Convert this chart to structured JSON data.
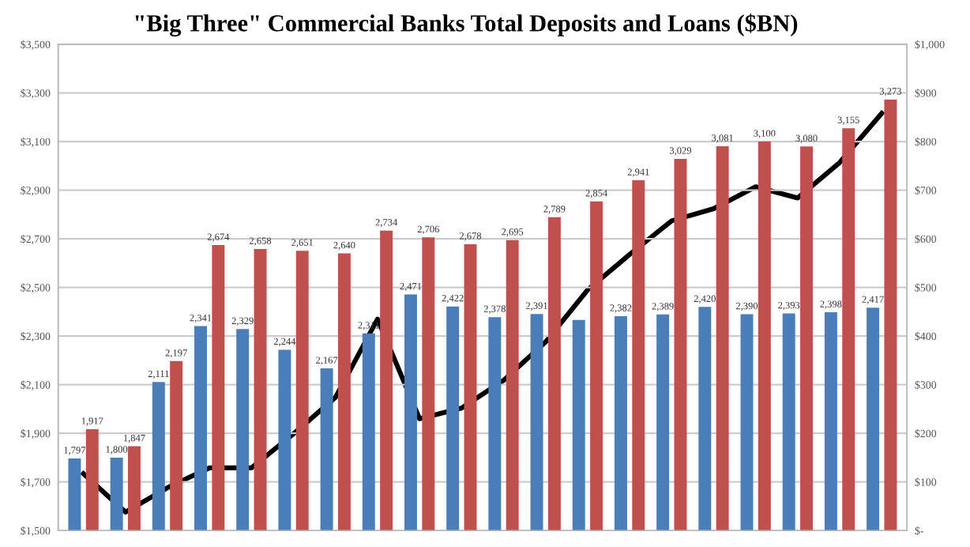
{
  "chart_data": {
    "type": "bar",
    "title": "\"Big Three\" Commercial Banks Total Deposits and Loans ($BN)",
    "categories": [
      null,
      null,
      null,
      null,
      null,
      null,
      null,
      null,
      null,
      null,
      null,
      null,
      null,
      null,
      null,
      null,
      null,
      null,
      null,
      null
    ],
    "series": [
      {
        "type": "bar",
        "color": "#4a7ebb",
        "values": [
          1797,
          1800,
          2111,
          2341,
          2329,
          2244,
          2167,
          2311,
          2471,
          2422,
          2378,
          2391,
          2366,
          2382,
          2389,
          2420,
          2390,
          2393,
          2398,
          2417
        ],
        "value_labels": [
          "1,797",
          "1,800",
          "2,111",
          "2,341",
          "2,329",
          "2,244",
          "2,167",
          "2,311",
          "2,471",
          "2,422",
          "2,378",
          "2,391",
          null,
          "2,382",
          "2,389",
          "2,420",
          "2,390",
          "2,393",
          "2,398",
          "2,417"
        ]
      },
      {
        "type": "bar",
        "color": "#c0504d",
        "values": [
          1917,
          1847,
          2197,
          2674,
          2658,
          2651,
          2640,
          2734,
          2706,
          2678,
          2695,
          2789,
          2854,
          2941,
          3029,
          3081,
          3100,
          3080,
          3155,
          3273
        ],
        "value_labels": [
          "1,917",
          "1,847",
          "2,197",
          "2,674",
          "2,658",
          "2,651",
          "2,640",
          "2,734",
          "2,706",
          "2,678",
          "2,695",
          "2,789",
          "2,854",
          "2,941",
          "3,029",
          "3,081",
          "3,100",
          "3,080",
          "3,155",
          "3,273"
        ]
      },
      {
        "type": "line",
        "axis": "y2",
        "color": "#000000",
        "values": [
          117,
          38,
          88,
          129,
          129,
          199,
          274,
          435,
          230,
          252,
          309,
          388,
          495,
          568,
          637,
          662,
          707,
          684,
          757,
          858
        ]
      }
    ],
    "ylim": [
      1500,
      3500
    ],
    "yticks": [
      {
        "value": 1500,
        "label": "$1,500"
      },
      {
        "value": 1700,
        "label": "$1,700"
      },
      {
        "value": 1900,
        "label": "$1,900"
      },
      {
        "value": 2100,
        "label": "$2,100"
      },
      {
        "value": 2300,
        "label": "$2,300"
      },
      {
        "value": 2500,
        "label": "$2,500"
      },
      {
        "value": 2700,
        "label": "$2,700"
      },
      {
        "value": 2900,
        "label": "$2,900"
      },
      {
        "value": 3100,
        "label": "$3,100"
      },
      {
        "value": 3300,
        "label": "$3,300"
      },
      {
        "value": 3500,
        "label": "$3,500"
      }
    ],
    "y2lim": [
      0,
      1000
    ],
    "y2ticks": [
      {
        "value": 0,
        "label": "$-"
      },
      {
        "value": 100,
        "label": "$100"
      },
      {
        "value": 200,
        "label": "$200"
      },
      {
        "value": 300,
        "label": "$300"
      },
      {
        "value": 400,
        "label": "$400"
      },
      {
        "value": 500,
        "label": "$500"
      },
      {
        "value": 600,
        "label": "$600"
      },
      {
        "value": 700,
        "label": "$700"
      },
      {
        "value": 800,
        "label": "$800"
      },
      {
        "value": 900,
        "label": "$900"
      },
      {
        "value": 1000,
        "label": "$1,000"
      }
    ],
    "grid": "y",
    "legend": false,
    "marker": "none",
    "line_style": "solid"
  }
}
